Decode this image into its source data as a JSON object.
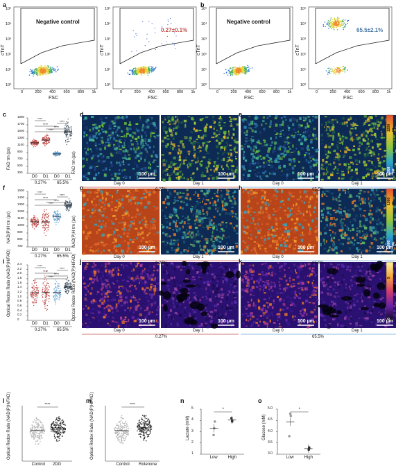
{
  "panel_labels": [
    "a",
    "b",
    "c",
    "d",
    "e",
    "f",
    "g",
    "h",
    "i",
    "j",
    "k",
    "l",
    "m",
    "n",
    "o"
  ],
  "flow": {
    "ylabel": "cTnT",
    "xlabel": "FSC",
    "xticks": [
      "0",
      "200",
      "400",
      "600",
      "800",
      "1k"
    ],
    "yticks": [
      "10⁰",
      "10¹",
      "10²",
      "10³",
      "10⁴",
      "10⁵"
    ],
    "neg_label": "Negative control",
    "pct_a": "0.27±0.1%",
    "pct_b": "65.5±2.1%",
    "colors": {
      "pct_a": "#c0504d",
      "pct_b": "#4a79a8"
    }
  },
  "violin": {
    "c": {
      "ylabel": "FAD τm (ps)",
      "yticks": [
        "300",
        "500",
        "700",
        "900",
        "1100",
        "1300",
        "1500",
        "1700",
        "1900"
      ]
    },
    "f": {
      "ylabel": "NAD(P)H τm (ps)",
      "yticks": [
        "700",
        "800",
        "900",
        "1000",
        "1100",
        "1200",
        "1300",
        "1400",
        "1500"
      ]
    },
    "i": {
      "ylabel": "Optical Redox Ratio (NAD(P)H/FAD)",
      "yticks": [
        "0",
        "0.2",
        "0.4",
        "0.6",
        "0.8",
        "1.0",
        "1.2",
        "1.4",
        "1.6",
        "1.8",
        "2.0",
        "2.2",
        "2.4"
      ]
    },
    "cat": [
      "D0",
      "D1",
      "D0",
      "D1"
    ],
    "group": [
      "0.27%",
      "65.5%"
    ],
    "sig": "****",
    "colors": {
      "d0_low": "#c0504d",
      "d1_low": "#c0504d",
      "d0_high": "#6fa8d6",
      "d1_high": "#4a5a6a"
    }
  },
  "micro": {
    "scale": "100 µm",
    "day0": "Day 0",
    "day1": "Day 1",
    "group_low": "0.27%",
    "group_high": "65.5%",
    "d_ylabel": "FAD τm (ps)",
    "g_ylabel": "NAD(P)H τm (ps)",
    "j_ylabel": "Optical Redox Ratio (NAD(P)H/FAD)",
    "cb_fad": [
      "1200 ps",
      "500 ps"
    ],
    "cb_nad": [
      "1300 ps",
      "800 ps"
    ],
    "cb_orr": [
      "5",
      "0"
    ],
    "cb_orr_label": "INAD(P)H/IFAD"
  },
  "bottom": {
    "l": {
      "ylabel": "Optical Redox Ratio (NAD(P)H/FAD)",
      "cats": [
        "Control",
        "2DG"
      ],
      "sig": "****"
    },
    "m": {
      "ylabel": "Optical Redox Ratio (NAD(P)H/FAD)",
      "cats": [
        "Control",
        "Rotenone"
      ],
      "sig": "****"
    },
    "n": {
      "ylabel": "Lactate (mM)",
      "cats": [
        "Low",
        "High"
      ],
      "sig": "*",
      "yticks": [
        "1",
        "2",
        "3",
        "4",
        "5"
      ]
    },
    "o": {
      "ylabel": "Glucose (mM)",
      "cats": [
        "Low",
        "High"
      ],
      "sig": "*",
      "yticks": [
        "3.0",
        "3.5",
        "4.0",
        "4.5",
        "5.0"
      ]
    }
  },
  "chart_data": [
    {
      "type": "scatter",
      "panel": "n",
      "ylabel": "Lactate (mM)",
      "categories": [
        "Low",
        "High"
      ],
      "ylim": [
        1,
        5
      ],
      "series": [
        {
          "values": [
            [
              2.7,
              3.3,
              3.9
            ],
            [
              3.9,
              4.0,
              4.2
            ]
          ]
        }
      ]
    },
    {
      "type": "scatter",
      "panel": "o",
      "ylabel": "Glucose (mM)",
      "categories": [
        "Low",
        "High"
      ],
      "ylim": [
        3.0,
        5.0
      ],
      "series": [
        {
          "values": [
            [
              4.8,
              4.7,
              3.8
            ],
            [
              3.2,
              3.25,
              3.3
            ]
          ]
        }
      ]
    }
  ]
}
